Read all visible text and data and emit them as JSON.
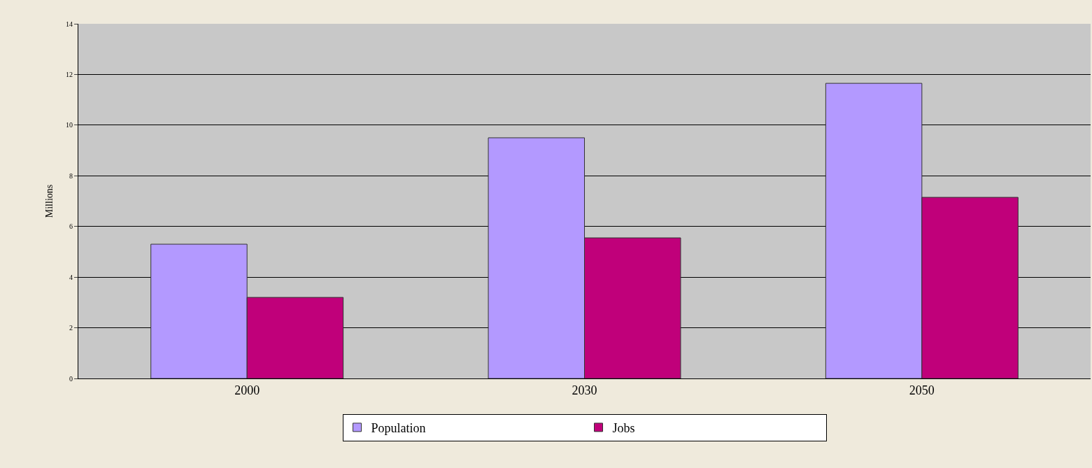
{
  "chart_data": {
    "type": "bar",
    "ylabel": "Millions",
    "categories": [
      "2000",
      "2030",
      "2050"
    ],
    "series": [
      {
        "name": "Population",
        "color": "#b399ff",
        "values": [
          5.3,
          9.5,
          11.65
        ]
      },
      {
        "name": "Jobs",
        "color": "#c0007a",
        "values": [
          3.2,
          5.55,
          7.15
        ]
      }
    ],
    "ylim": [
      0,
      14
    ],
    "yticks": [
      0,
      2,
      4,
      6,
      8,
      10,
      12,
      14
    ],
    "grid": "y",
    "legend": "bottom"
  }
}
